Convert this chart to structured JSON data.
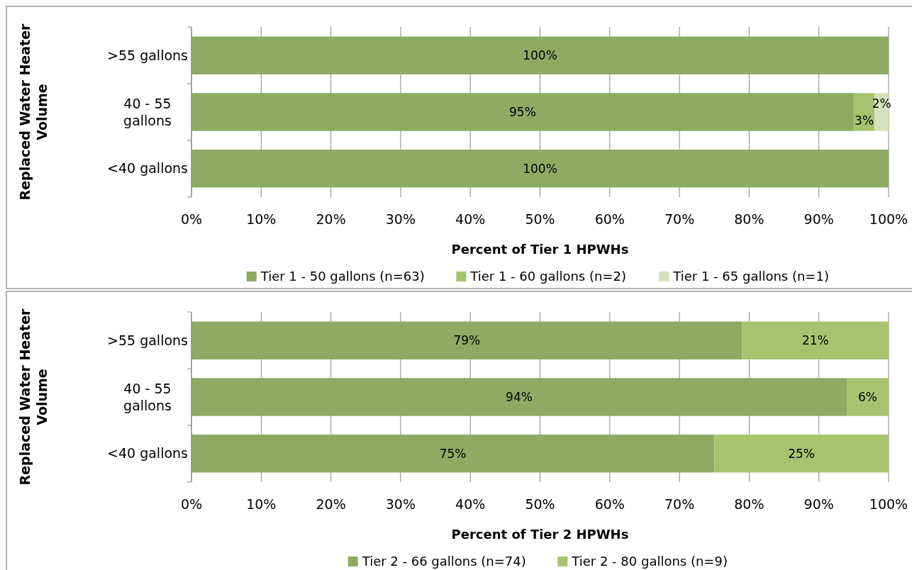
{
  "chart_data": [
    {
      "type": "bar",
      "orientation": "horizontal",
      "stacked": true,
      "xlabel": "Percent of Tier 1 HPWHs",
      "ylabel": "Replaced Water Heater Volume",
      "categories": [
        ">55 gallons",
        "40 - 55 gallons",
        "<40 gallons"
      ],
      "xlim": [
        0,
        100
      ],
      "xticks": [
        {
          "value": 0,
          "label": "0%"
        },
        {
          "value": 10,
          "label": "10%"
        },
        {
          "value": 20,
          "label": "20%"
        },
        {
          "value": 30,
          "label": "30%"
        },
        {
          "value": 40,
          "label": "40%"
        },
        {
          "value": 50,
          "label": "50%"
        },
        {
          "value": 60,
          "label": "60%"
        },
        {
          "value": 70,
          "label": "70%"
        },
        {
          "value": 80,
          "label": "80%"
        },
        {
          "value": 90,
          "label": "90%"
        },
        {
          "value": 100,
          "label": "100%"
        }
      ],
      "grid": "x",
      "legend": "bottom",
      "series": [
        {
          "name": "Tier 1 - 50 gallons (n=63)",
          "color": "#8eaa63",
          "values": [
            100,
            95,
            100
          ],
          "value_labels": [
            "100%",
            "95%",
            "100%"
          ]
        },
        {
          "name": "Tier 1 - 60 gallons (n=2)",
          "color": "#a6c46f",
          "values": [
            0,
            3,
            0
          ],
          "value_labels": [
            null,
            "3%",
            null
          ]
        },
        {
          "name": "Tier 1 - 65 gallons (n=1)",
          "color": "#d5e2bd",
          "values": [
            0,
            2,
            0
          ],
          "value_labels": [
            null,
            "2%",
            null
          ]
        }
      ]
    },
    {
      "type": "bar",
      "orientation": "horizontal",
      "stacked": true,
      "xlabel": "Percent of Tier 2 HPWHs",
      "ylabel": "Replaced Water Heater Volume",
      "categories": [
        ">55 gallons",
        "40 - 55 gallons",
        "<40 gallons"
      ],
      "xlim": [
        0,
        100
      ],
      "xticks": [
        {
          "value": 0,
          "label": "0%"
        },
        {
          "value": 10,
          "label": "10%"
        },
        {
          "value": 20,
          "label": "20%"
        },
        {
          "value": 30,
          "label": "30%"
        },
        {
          "value": 40,
          "label": "40%"
        },
        {
          "value": 50,
          "label": "50%"
        },
        {
          "value": 60,
          "label": "60%"
        },
        {
          "value": 70,
          "label": "70%"
        },
        {
          "value": 80,
          "label": "80%"
        },
        {
          "value": 90,
          "label": "90%"
        },
        {
          "value": 100,
          "label": "100%"
        }
      ],
      "grid": "x",
      "legend": "bottom",
      "series": [
        {
          "name": "Tier 2 - 66 gallons (n=74)",
          "color": "#8eaa63",
          "values": [
            79,
            94,
            75
          ],
          "value_labels": [
            "79%",
            "94%",
            "75%"
          ]
        },
        {
          "name": "Tier 2 - 80 gallons (n=9)",
          "color": "#a6c46f",
          "values": [
            21,
            6,
            25
          ],
          "value_labels": [
            "21%",
            "6%",
            "25%"
          ]
        }
      ]
    }
  ]
}
